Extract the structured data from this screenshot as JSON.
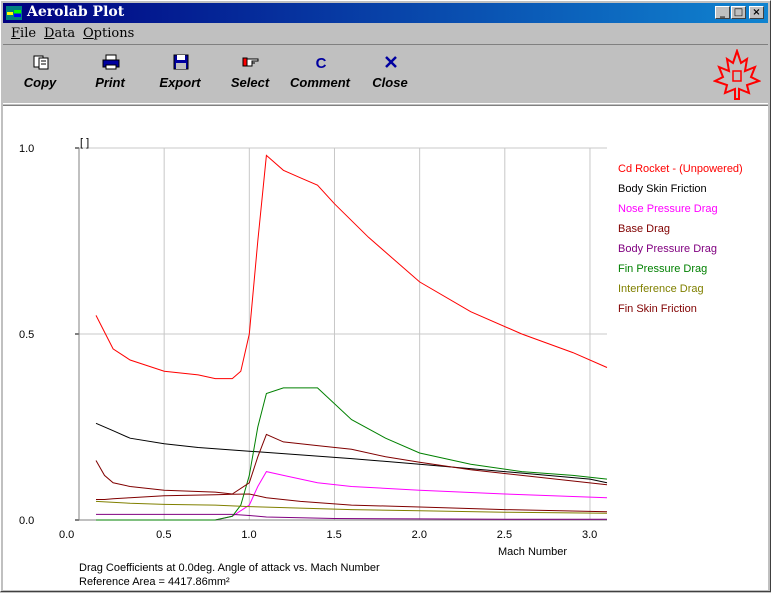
{
  "window": {
    "title": "Aerolab Plot"
  },
  "menu": [
    {
      "label": "File",
      "key": "F",
      "rest": "ile"
    },
    {
      "label": "Data",
      "key": "D",
      "rest": "ata"
    },
    {
      "label": "Options",
      "key": "O",
      "rest": "ptions"
    }
  ],
  "toolbar": {
    "copy": "Copy",
    "print": "Print",
    "export": "Export",
    "select": "Select",
    "comment": "Comment",
    "close": "Close"
  },
  "plot": {
    "unit_label": "[ ]",
    "caption_line1": "Drag Coefficients at 0.0deg. Angle of attack vs. Mach Number",
    "caption_line2": "Reference Area =  4417.86mm²"
  },
  "chart_data": {
    "type": "line",
    "xlabel": "Mach Number",
    "ylabel": "[ ]",
    "xlim": [
      0.0,
      3.1
    ],
    "ylim": [
      0.0,
      1.0
    ],
    "xticks": [
      0.0,
      0.5,
      1.0,
      1.5,
      2.0,
      2.5,
      3.0
    ],
    "xtick_labels": [
      "0.0",
      "0.5",
      "1.0",
      "1.5",
      "2.0",
      "2.5",
      "3.0"
    ],
    "yticks": [
      0.0,
      0.5,
      1.0
    ],
    "ytick_labels": [
      "0.0",
      "0.5",
      "1.0"
    ],
    "grid": true,
    "legend_position": "right",
    "series": [
      {
        "name": "Cd Rocket - (Unpowered)",
        "color": "#ff0000",
        "x": [
          0.1,
          0.2,
          0.3,
          0.5,
          0.7,
          0.8,
          0.9,
          0.95,
          1.0,
          1.05,
          1.1,
          1.2,
          1.3,
          1.4,
          1.5,
          1.7,
          2.0,
          2.3,
          2.6,
          2.9,
          3.1
        ],
        "y": [
          0.55,
          0.46,
          0.43,
          0.4,
          0.39,
          0.38,
          0.38,
          0.4,
          0.5,
          0.75,
          0.98,
          0.94,
          0.92,
          0.9,
          0.85,
          0.76,
          0.64,
          0.56,
          0.5,
          0.45,
          0.41
        ]
      },
      {
        "name": "Body Skin Friction",
        "color": "#000000",
        "x": [
          0.1,
          0.2,
          0.3,
          0.5,
          0.7,
          1.0,
          1.3,
          1.6,
          2.0,
          2.5,
          3.0,
          3.1
        ],
        "y": [
          0.26,
          0.24,
          0.22,
          0.205,
          0.195,
          0.185,
          0.175,
          0.165,
          0.15,
          0.13,
          0.11,
          0.1
        ]
      },
      {
        "name": "Nose Pressure Drag",
        "color": "#ff00ff",
        "x": [
          0.1,
          0.5,
          0.8,
          0.9,
          1.0,
          1.05,
          1.1,
          1.2,
          1.4,
          1.6,
          2.0,
          2.5,
          3.1
        ],
        "y": [
          0.0,
          0.0,
          0.0,
          0.01,
          0.04,
          0.09,
          0.13,
          0.12,
          0.1,
          0.09,
          0.08,
          0.07,
          0.06
        ]
      },
      {
        "name": "Base Drag",
        "color": "#800000",
        "x": [
          0.1,
          0.15,
          0.2,
          0.3,
          0.5,
          0.8,
          0.9,
          1.0,
          1.1,
          1.3,
          1.6,
          2.0,
          2.5,
          3.1
        ],
        "y": [
          0.055,
          0.055,
          0.057,
          0.06,
          0.065,
          0.068,
          0.069,
          0.07,
          0.06,
          0.05,
          0.04,
          0.035,
          0.028,
          0.022
        ]
      },
      {
        "name": "Body Pressure Drag",
        "color": "#800080",
        "x": [
          0.1,
          0.5,
          0.8,
          0.9,
          1.0,
          1.1,
          1.5,
          2.0,
          2.5,
          3.1
        ],
        "y": [
          0.015,
          0.015,
          0.015,
          0.015,
          0.012,
          0.008,
          0.004,
          0.003,
          0.002,
          0.002
        ]
      },
      {
        "name": "Fin Pressure Drag",
        "color": "#008000",
        "x": [
          0.1,
          0.5,
          0.8,
          0.9,
          0.95,
          1.0,
          1.05,
          1.1,
          1.2,
          1.3,
          1.4,
          1.6,
          1.8,
          2.0,
          2.3,
          2.6,
          2.9,
          3.1
        ],
        "y": [
          0.0,
          0.0,
          0.0,
          0.01,
          0.04,
          0.12,
          0.25,
          0.34,
          0.355,
          0.355,
          0.355,
          0.27,
          0.22,
          0.18,
          0.15,
          0.13,
          0.12,
          0.11
        ]
      },
      {
        "name": "Interference Drag",
        "color": "#808000",
        "x": [
          0.1,
          0.3,
          0.5,
          0.8,
          1.0,
          1.3,
          1.6,
          2.0,
          2.5,
          3.1
        ],
        "y": [
          0.05,
          0.045,
          0.042,
          0.04,
          0.036,
          0.032,
          0.028,
          0.025,
          0.021,
          0.018
        ]
      },
      {
        "name": "Fin Skin Friction",
        "color": "#800000",
        "x": [
          0.1,
          0.15,
          0.2,
          0.3,
          0.5,
          0.8,
          0.9,
          1.0,
          1.05,
          1.1,
          1.15,
          1.2,
          1.4,
          1.6,
          1.8,
          2.0,
          2.3,
          2.6,
          3.1
        ],
        "y": [
          0.16,
          0.12,
          0.1,
          0.09,
          0.08,
          0.075,
          0.07,
          0.1,
          0.17,
          0.23,
          0.22,
          0.21,
          0.2,
          0.19,
          0.17,
          0.155,
          0.135,
          0.12,
          0.095
        ]
      }
    ]
  }
}
